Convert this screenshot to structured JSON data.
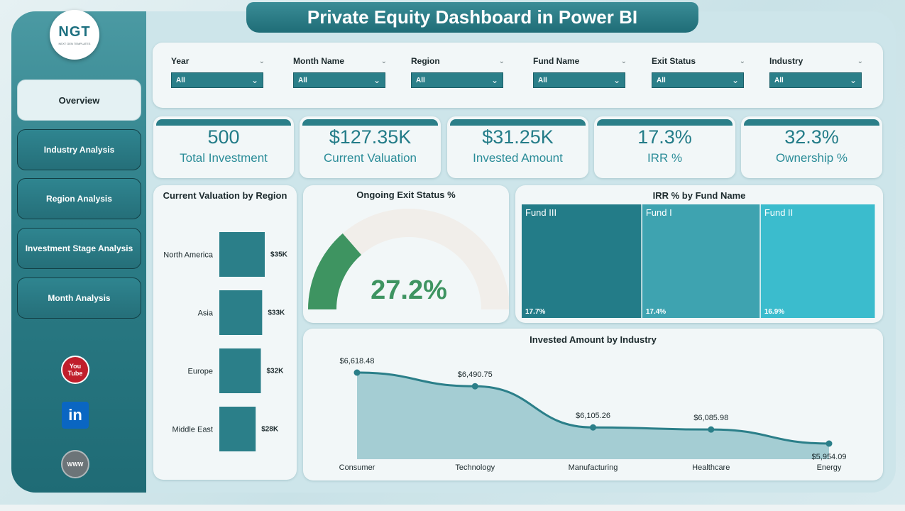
{
  "title": "Private Equity Dashboard in Power BI",
  "logo": {
    "text": "NGT",
    "subtitle": "NEXT GEN TEMPLATES"
  },
  "nav": [
    {
      "label": "Overview",
      "active": true
    },
    {
      "label": "Industry Analysis",
      "active": false
    },
    {
      "label": "Region Analysis",
      "active": false
    },
    {
      "label": "Investment Stage Analysis",
      "active": false
    },
    {
      "label": "Month Analysis",
      "active": false
    }
  ],
  "social": {
    "youtube_line1": "You",
    "youtube_line2": "Tube",
    "linkedin": "in",
    "web": "WWW"
  },
  "filters": [
    {
      "label": "Year",
      "value": "All"
    },
    {
      "label": "Month Name",
      "value": "All"
    },
    {
      "label": "Region",
      "value": "All"
    },
    {
      "label": "Fund Name",
      "value": "All"
    },
    {
      "label": "Exit Status",
      "value": "All"
    },
    {
      "label": "Industry",
      "value": "All"
    }
  ],
  "kpis": [
    {
      "value": "500",
      "label": "Total Investment"
    },
    {
      "value": "$127.35K",
      "label": "Current Valuation"
    },
    {
      "value": "$31.25K",
      "label": "Invested Amount"
    },
    {
      "value": "17.3%",
      "label": "IRR %"
    },
    {
      "value": "32.3%",
      "label": "Ownership %"
    }
  ],
  "colors": {
    "accent": "#2b7f89",
    "gauge_fill": "#3e9461",
    "gauge_track": "#f1eeea",
    "treemap": [
      "#237c88",
      "#3ea3b0",
      "#3bbccd"
    ],
    "area_fill": "#a4cdd3",
    "line": "#2b7f89"
  },
  "chart_data": [
    {
      "type": "bar",
      "orientation": "horizontal",
      "title": "Current Valuation by Region",
      "categories": [
        "North America",
        "Asia",
        "Europe",
        "Middle East"
      ],
      "values": [
        35,
        33,
        32,
        28
      ],
      "data_labels": [
        "$35K",
        "$33K",
        "$32K",
        "$28K"
      ],
      "unit": "$K"
    },
    {
      "type": "gauge",
      "title": "Ongoing Exit Status %",
      "value": 27.2,
      "value_label": "27.2%",
      "max": 100
    },
    {
      "type": "treemap",
      "title": "IRR % by Fund Name",
      "categories": [
        "Fund III",
        "Fund I",
        "Fund II"
      ],
      "values": [
        17.7,
        17.4,
        16.9
      ],
      "data_labels": [
        "17.7%",
        "17.4%",
        "16.9%"
      ]
    },
    {
      "type": "area",
      "title": "Invested Amount by Industry",
      "categories": [
        "Consumer",
        "Technology",
        "Manufacturing",
        "Healthcare",
        "Energy"
      ],
      "values": [
        6618.48,
        6490.75,
        6105.26,
        6085.98,
        5954.09
      ],
      "data_labels": [
        "$6,618.48",
        "$6,490.75",
        "$6,105.26",
        "$6,085.98",
        "$5,954.09"
      ]
    }
  ]
}
